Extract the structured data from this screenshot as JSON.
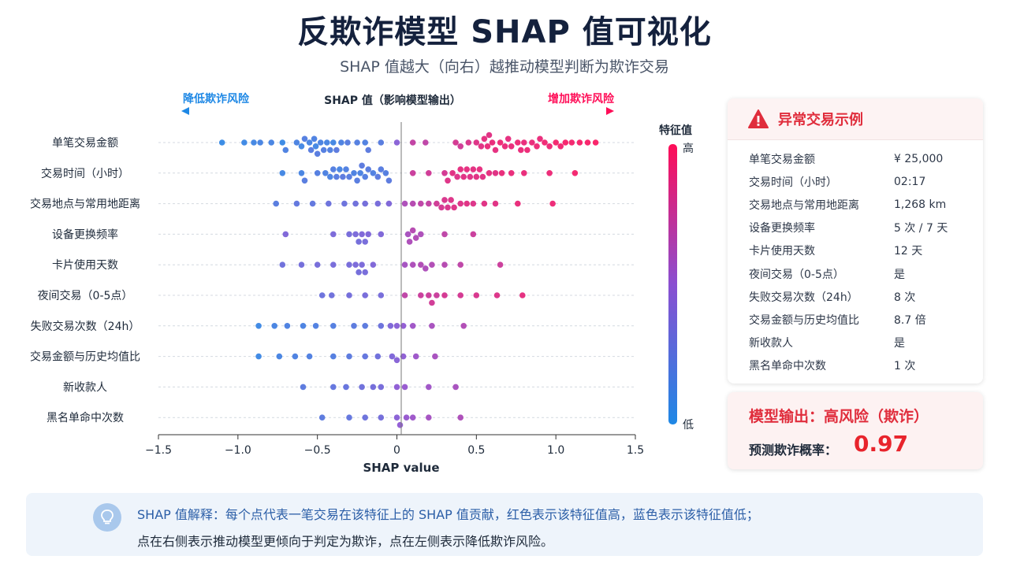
{
  "page": {
    "title": "反欺诈模型 SHAP 值可视化",
    "subtitle": "SHAP 值越大（向右）越推动模型判断为欺诈交易"
  },
  "chart_data": {
    "type": "scatter",
    "subtype": "shap_beeswarm",
    "title": "SHAP 值（影响模型输出）",
    "xlabel": "SHAP value",
    "left_annotation": "降低欺诈风险",
    "right_annotation": "增加欺诈风险",
    "xlim": [
      -1.5,
      1.5
    ],
    "xticks": [
      -1.5,
      -1.0,
      -0.5,
      0,
      0.5,
      1.0,
      1.5
    ],
    "xtick_labels": [
      "−1.5",
      "−1.0",
      "−0.5",
      "0",
      "0.5",
      "1.0",
      "1.5"
    ],
    "colorbar": {
      "title": "特征值",
      "high_label": "高",
      "low_label": "低",
      "low_color": "#1e88e5",
      "high_color": "#ff0d57"
    },
    "grid": "horizontal dashed row guides",
    "features": [
      {
        "name": "单笔交易金额",
        "points": [
          [
            -1.1,
            0.05
          ],
          [
            -0.96,
            0.08
          ],
          [
            -0.9,
            0.1
          ],
          [
            -0.86,
            0.12
          ],
          [
            -0.79,
            0.12
          ],
          [
            -0.72,
            0.06
          ],
          [
            -0.7,
            0.15
          ],
          [
            -0.63,
            0.14
          ],
          [
            -0.6,
            0.1
          ],
          [
            -0.58,
            0.18
          ],
          [
            -0.55,
            0.12
          ],
          [
            -0.54,
            0.2
          ],
          [
            -0.52,
            0.15
          ],
          [
            -0.51,
            0.1
          ],
          [
            -0.5,
            0.2
          ],
          [
            -0.48,
            0.14
          ],
          [
            -0.46,
            0.18
          ],
          [
            -0.44,
            0.12
          ],
          [
            -0.42,
            0.16
          ],
          [
            -0.4,
            0.1
          ],
          [
            -0.38,
            0.22
          ],
          [
            -0.35,
            0.15
          ],
          [
            -0.31,
            0.2
          ],
          [
            -0.25,
            0.18
          ],
          [
            -0.2,
            0.16
          ],
          [
            -0.18,
            0.22
          ],
          [
            -0.1,
            0.2
          ],
          [
            0,
            0.45
          ],
          [
            0.1,
            0.72
          ],
          [
            0.18,
            0.7
          ],
          [
            0.37,
            0.8
          ],
          [
            0.4,
            0.78
          ],
          [
            0.45,
            0.82
          ],
          [
            0.5,
            0.85
          ],
          [
            0.53,
            0.86
          ],
          [
            0.55,
            0.88
          ],
          [
            0.57,
            0.9
          ],
          [
            0.58,
            0.86
          ],
          [
            0.6,
            0.9
          ],
          [
            0.62,
            0.88
          ],
          [
            0.65,
            0.92
          ],
          [
            0.68,
            0.9
          ],
          [
            0.7,
            0.88
          ],
          [
            0.72,
            0.9
          ],
          [
            0.76,
            0.92
          ],
          [
            0.78,
            0.9
          ],
          [
            0.8,
            0.9
          ],
          [
            0.82,
            0.92
          ],
          [
            0.85,
            0.9
          ],
          [
            0.88,
            0.92
          ],
          [
            0.9,
            0.9
          ],
          [
            0.93,
            0.93
          ],
          [
            0.96,
            0.92
          ],
          [
            1.0,
            0.95
          ],
          [
            1.03,
            0.94
          ],
          [
            1.06,
            0.96
          ],
          [
            1.1,
            0.95
          ],
          [
            1.15,
            0.96
          ],
          [
            1.2,
            0.97
          ],
          [
            1.25,
            0.98
          ]
        ]
      },
      {
        "name": "交易时间（小时）",
        "points": [
          [
            -0.72,
            0.1
          ],
          [
            -0.6,
            0.12
          ],
          [
            -0.58,
            0.2
          ],
          [
            -0.5,
            0.18
          ],
          [
            -0.45,
            0.15
          ],
          [
            -0.42,
            0.14
          ],
          [
            -0.4,
            0.18
          ],
          [
            -0.38,
            0.2
          ],
          [
            -0.36,
            0.12
          ],
          [
            -0.34,
            0.22
          ],
          [
            -0.32,
            0.16
          ],
          [
            -0.3,
            0.2
          ],
          [
            -0.27,
            0.15
          ],
          [
            -0.25,
            0.2
          ],
          [
            -0.23,
            0.14
          ],
          [
            -0.22,
            0.22
          ],
          [
            -0.2,
            0.18
          ],
          [
            -0.18,
            0.2
          ],
          [
            -0.15,
            0.16
          ],
          [
            -0.12,
            0.22
          ],
          [
            -0.1,
            0.2
          ],
          [
            -0.07,
            0.18
          ],
          [
            -0.05,
            0.22
          ],
          [
            0.1,
            0.75
          ],
          [
            0.2,
            0.78
          ],
          [
            0.3,
            0.8
          ],
          [
            0.32,
            0.85
          ],
          [
            0.35,
            0.86
          ],
          [
            0.38,
            0.84
          ],
          [
            0.4,
            0.88
          ],
          [
            0.42,
            0.86
          ],
          [
            0.44,
            0.88
          ],
          [
            0.46,
            0.85
          ],
          [
            0.48,
            0.87
          ],
          [
            0.5,
            0.86
          ],
          [
            0.52,
            0.88
          ],
          [
            0.54,
            0.86
          ],
          [
            0.58,
            0.88
          ],
          [
            0.62,
            0.86
          ],
          [
            0.66,
            0.9
          ],
          [
            0.72,
            0.9
          ],
          [
            0.8,
            0.9
          ],
          [
            0.96,
            0.92
          ],
          [
            1.12,
            0.95
          ]
        ]
      },
      {
        "name": "交易地点与常用地距离",
        "points": [
          [
            -0.76,
            0.2
          ],
          [
            -0.63,
            0.25
          ],
          [
            -0.53,
            0.25
          ],
          [
            -0.43,
            0.3
          ],
          [
            -0.33,
            0.3
          ],
          [
            -0.26,
            0.32
          ],
          [
            -0.2,
            0.34
          ],
          [
            -0.12,
            0.36
          ],
          [
            -0.05,
            0.4
          ],
          [
            0.05,
            0.62
          ],
          [
            0.1,
            0.66
          ],
          [
            0.15,
            0.7
          ],
          [
            0.2,
            0.72
          ],
          [
            0.25,
            0.78
          ],
          [
            0.28,
            0.8
          ],
          [
            0.3,
            0.82
          ],
          [
            0.32,
            0.82
          ],
          [
            0.34,
            0.84
          ],
          [
            0.36,
            0.85
          ],
          [
            0.4,
            0.84
          ],
          [
            0.44,
            0.86
          ],
          [
            0.48,
            0.84
          ],
          [
            0.55,
            0.86
          ],
          [
            0.62,
            0.86
          ],
          [
            0.76,
            0.9
          ],
          [
            0.98,
            0.92
          ]
        ]
      },
      {
        "name": "设备更换频率",
        "points": [
          [
            -0.7,
            0.4
          ],
          [
            -0.4,
            0.38
          ],
          [
            -0.3,
            0.36
          ],
          [
            -0.26,
            0.38
          ],
          [
            -0.24,
            0.34
          ],
          [
            -0.22,
            0.4
          ],
          [
            -0.2,
            0.36
          ],
          [
            -0.18,
            0.4
          ],
          [
            -0.1,
            0.4
          ],
          [
            0.07,
            0.6
          ],
          [
            0.08,
            0.62
          ],
          [
            0.1,
            0.66
          ],
          [
            0.12,
            0.64
          ],
          [
            0.15,
            0.62
          ],
          [
            0.3,
            0.7
          ],
          [
            0.48,
            0.75
          ]
        ]
      },
      {
        "name": "卡片使用天数",
        "points": [
          [
            -0.72,
            0.32
          ],
          [
            -0.6,
            0.34
          ],
          [
            -0.5,
            0.35
          ],
          [
            -0.4,
            0.36
          ],
          [
            -0.3,
            0.36
          ],
          [
            -0.26,
            0.38
          ],
          [
            -0.24,
            0.34
          ],
          [
            -0.22,
            0.38
          ],
          [
            -0.2,
            0.36
          ],
          [
            -0.15,
            0.4
          ],
          [
            0.05,
            0.58
          ],
          [
            0.1,
            0.62
          ],
          [
            0.15,
            0.64
          ],
          [
            0.18,
            0.62
          ],
          [
            0.22,
            0.64
          ],
          [
            0.3,
            0.66
          ],
          [
            0.4,
            0.7
          ],
          [
            0.65,
            0.76
          ]
        ]
      },
      {
        "name": "夜间交易（0-5点）",
        "points": [
          [
            -0.47,
            0.3
          ],
          [
            -0.41,
            0.32
          ],
          [
            -0.3,
            0.34
          ],
          [
            -0.2,
            0.36
          ],
          [
            -0.1,
            0.36
          ],
          [
            0.05,
            0.7
          ],
          [
            0.15,
            0.75
          ],
          [
            0.2,
            0.76
          ],
          [
            0.22,
            0.78
          ],
          [
            0.25,
            0.75
          ],
          [
            0.3,
            0.8
          ],
          [
            0.4,
            0.8
          ],
          [
            0.5,
            0.82
          ],
          [
            0.63,
            0.84
          ],
          [
            0.79,
            0.88
          ]
        ]
      },
      {
        "name": "失败交易次数（24h）",
        "points": [
          [
            -0.87,
            0.08
          ],
          [
            -0.77,
            0.12
          ],
          [
            -0.69,
            0.15
          ],
          [
            -0.59,
            0.14
          ],
          [
            -0.51,
            0.16
          ],
          [
            -0.4,
            0.18
          ],
          [
            -0.27,
            0.22
          ],
          [
            -0.2,
            0.22
          ],
          [
            -0.1,
            0.3
          ],
          [
            -0.04,
            0.4
          ],
          [
            0,
            0.45
          ],
          [
            0.04,
            0.5
          ],
          [
            0.1,
            0.56
          ],
          [
            0.22,
            0.6
          ],
          [
            0.42,
            0.64
          ]
        ]
      },
      {
        "name": "交易金额与历史均值比",
        "points": [
          [
            -0.87,
            0.08
          ],
          [
            -0.74,
            0.12
          ],
          [
            -0.64,
            0.15
          ],
          [
            -0.55,
            0.16
          ],
          [
            -0.4,
            0.18
          ],
          [
            -0.3,
            0.22
          ],
          [
            -0.2,
            0.26
          ],
          [
            -0.12,
            0.32
          ],
          [
            -0.03,
            0.4
          ],
          [
            0.0,
            0.44
          ],
          [
            0.04,
            0.48
          ],
          [
            0.12,
            0.55
          ],
          [
            0.24,
            0.6
          ]
        ]
      },
      {
        "name": "新收款人",
        "points": [
          [
            -0.59,
            0.22
          ],
          [
            -0.4,
            0.26
          ],
          [
            -0.32,
            0.28
          ],
          [
            -0.22,
            0.32
          ],
          [
            -0.15,
            0.34
          ],
          [
            -0.1,
            0.36
          ],
          [
            0,
            0.48
          ],
          [
            0.05,
            0.52
          ],
          [
            0.2,
            0.56
          ],
          [
            0.37,
            0.6
          ]
        ]
      },
      {
        "name": "黑名单命中次数",
        "points": [
          [
            -0.47,
            0.22
          ],
          [
            -0.3,
            0.26
          ],
          [
            -0.2,
            0.3
          ],
          [
            -0.1,
            0.34
          ],
          [
            0,
            0.46
          ],
          [
            0.02,
            0.5
          ],
          [
            0.06,
            0.52
          ],
          [
            0.1,
            0.55
          ],
          [
            0.2,
            0.58
          ],
          [
            0.4,
            0.62
          ]
        ]
      }
    ]
  },
  "case": {
    "title": "异常交易示例",
    "rows": [
      {
        "label": "单笔交易金额",
        "value": "¥ 25,000"
      },
      {
        "label": "交易时间（小时）",
        "value": "02:17"
      },
      {
        "label": "交易地点与常用地距离",
        "value": "1,268 km"
      },
      {
        "label": "设备更换频率",
        "value": "5 次 / 7 天"
      },
      {
        "label": "卡片使用天数",
        "value": "12 天"
      },
      {
        "label": "夜间交易（0-5点）",
        "value": "是"
      },
      {
        "label": "失败交易次数（24h）",
        "value": "8 次"
      },
      {
        "label": "交易金额与历史均值比",
        "value": "8.7 倍"
      },
      {
        "label": "新收款人",
        "value": "是"
      },
      {
        "label": "黑名单命中次数",
        "value": "1 次"
      }
    ]
  },
  "output": {
    "title": "模型输出：高风险（欺诈）",
    "prob_label": "预测欺诈概率：",
    "prob_value": "0.97"
  },
  "note": {
    "line1": "SHAP 值解释：每个点代表一笔交易在该特征上的 SHAP 值贡献，红色表示该特征值高，蓝色表示该特征值低；",
    "line2": "点在右侧表示推动模型更倾向于判定为欺诈，点在左侧表示降低欺诈风险。"
  },
  "colors": {
    "accent_red": "#e02d3c",
    "accent_blue": "#1e88e5",
    "title": "#14213d"
  }
}
